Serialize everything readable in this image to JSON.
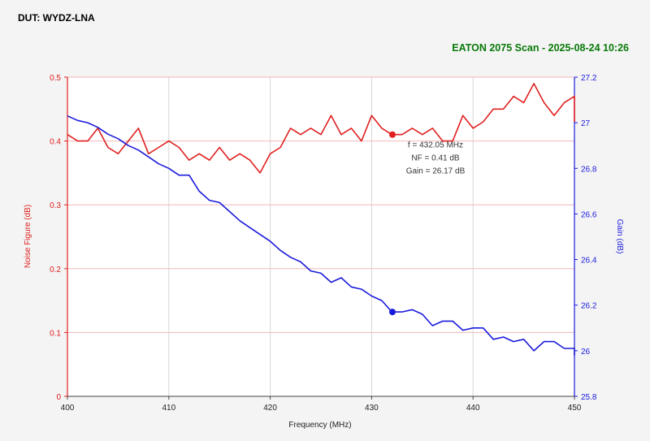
{
  "header": {
    "dut_label": "DUT: WYDZ-LNA",
    "scan_label": "EATON 2075 Scan - 2025-08-24 10:26"
  },
  "colors": {
    "nf": "#e02020",
    "gain": "#1a1adc",
    "marker_text": "#333333",
    "scan_label": "#0a7a0a"
  },
  "chart_data": {
    "type": "line",
    "title": "",
    "xlabel": "Frequency (MHz)",
    "ylabel": "Noise Figure (dB)",
    "y2label": "Gain (dB)",
    "xlim": [
      400,
      450
    ],
    "ylim": [
      0,
      0.5
    ],
    "y2lim": [
      25.8,
      27.2
    ],
    "x_ticks": [
      "400",
      "410",
      "420",
      "430",
      "440",
      "450"
    ],
    "y_ticks": [
      "0",
      "0.1",
      "0.2",
      "0.3",
      "0.4",
      "0.5"
    ],
    "y2_ticks": [
      "25.8",
      "26",
      "26.2",
      "26.4",
      "26.6",
      "26.8",
      "27",
      "27.2"
    ],
    "grid": true,
    "series": [
      {
        "name": "Noise Figure",
        "axis": "left",
        "color": "#e02020",
        "x": [
          400,
          401,
          402,
          403,
          404,
          405,
          406,
          407,
          408,
          409,
          410,
          411,
          412,
          413,
          414,
          415,
          416,
          417,
          418,
          419,
          420,
          421,
          422,
          423,
          424,
          425,
          426,
          427,
          428,
          429,
          430,
          431,
          432,
          433,
          434,
          435,
          436,
          437,
          438,
          439,
          440,
          441,
          442,
          443,
          444,
          445,
          446,
          447,
          448,
          449,
          450,
          450
        ],
        "values": [
          0.41,
          0.4,
          0.4,
          0.42,
          0.39,
          0.38,
          0.4,
          0.42,
          0.38,
          0.39,
          0.4,
          0.39,
          0.37,
          0.38,
          0.37,
          0.39,
          0.37,
          0.38,
          0.37,
          0.35,
          0.38,
          0.39,
          0.42,
          0.41,
          0.42,
          0.41,
          0.44,
          0.41,
          0.42,
          0.4,
          0.44,
          0.42,
          0.41,
          0.41,
          0.42,
          0.41,
          0.42,
          0.4,
          0.4,
          0.44,
          0.42,
          0.43,
          0.45,
          0.45,
          0.47,
          0.46,
          0.49,
          0.46,
          0.44,
          0.46,
          0.47,
          0.43
        ]
      },
      {
        "name": "Gain",
        "axis": "right",
        "color": "#1a1adc",
        "x": [
          400,
          401,
          402,
          403,
          404,
          405,
          406,
          407,
          408,
          409,
          410,
          411,
          412,
          413,
          414,
          415,
          416,
          417,
          418,
          419,
          420,
          421,
          422,
          423,
          424,
          425,
          426,
          427,
          428,
          429,
          430,
          431,
          432,
          433,
          434,
          435,
          436,
          437,
          438,
          439,
          440,
          441,
          442,
          443,
          444,
          445,
          446,
          447,
          448,
          449,
          450,
          450
        ],
        "values": [
          27.03,
          27.01,
          27.0,
          26.98,
          26.95,
          26.93,
          26.9,
          26.88,
          26.85,
          26.82,
          26.8,
          26.77,
          26.77,
          26.7,
          26.66,
          26.65,
          26.61,
          26.57,
          26.54,
          26.51,
          26.48,
          26.44,
          26.41,
          26.39,
          26.35,
          26.34,
          26.3,
          26.32,
          26.28,
          26.27,
          26.24,
          26.22,
          26.17,
          26.17,
          26.18,
          26.16,
          26.11,
          26.13,
          26.13,
          26.09,
          26.1,
          26.1,
          26.05,
          26.06,
          26.04,
          26.05,
          26.0,
          26.04,
          26.04,
          26.01,
          26.01,
          25.98
        ]
      }
    ],
    "marker": {
      "x": 432.05,
      "nf": 0.41,
      "gain": 26.17,
      "lines": [
        "f = 432.05 MHz",
        "NF = 0.41 dB",
        "Gain = 26.17 dB"
      ]
    }
  }
}
